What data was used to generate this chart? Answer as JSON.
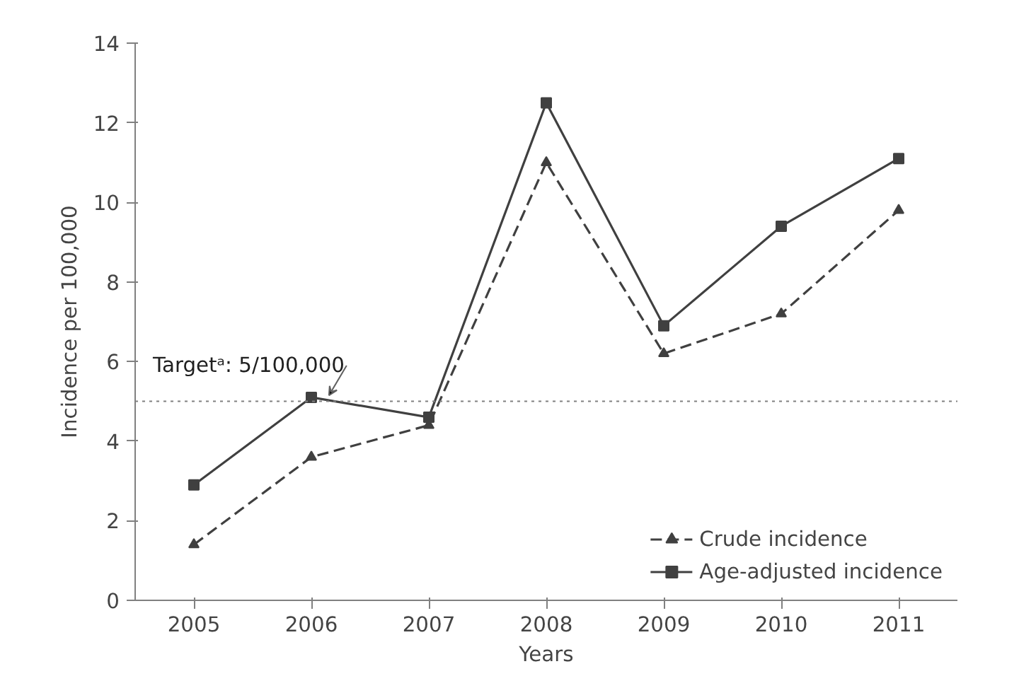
{
  "chart_data": {
    "type": "line",
    "xlabel": "Years",
    "ylabel": "Incidence per 100,000",
    "categories": [
      "2005",
      "2006",
      "2007",
      "2008",
      "2009",
      "2010",
      "2011"
    ],
    "series": [
      {
        "name": "Crude incidence",
        "color": "#404040",
        "marker": "triangle",
        "line_style": "dashed",
        "values": [
          1.4,
          3.6,
          4.4,
          11.0,
          6.2,
          7.2,
          9.8
        ]
      },
      {
        "name": "Age-adjusted incidence",
        "color": "#404040",
        "marker": "square",
        "line_style": "solid",
        "values": [
          2.9,
          5.1,
          4.6,
          12.5,
          6.9,
          9.4,
          11.1
        ]
      }
    ],
    "ylim": [
      0,
      14
    ],
    "yticks": [
      0,
      2,
      4,
      6,
      8,
      10,
      12,
      14
    ],
    "ref_lines": [
      {
        "axis": "y",
        "value": 5,
        "label": "Targetᵃ: 5/100,000",
        "color": "#808080",
        "line_style": "dotted"
      }
    ],
    "grid": false,
    "legend": "bottom right"
  }
}
